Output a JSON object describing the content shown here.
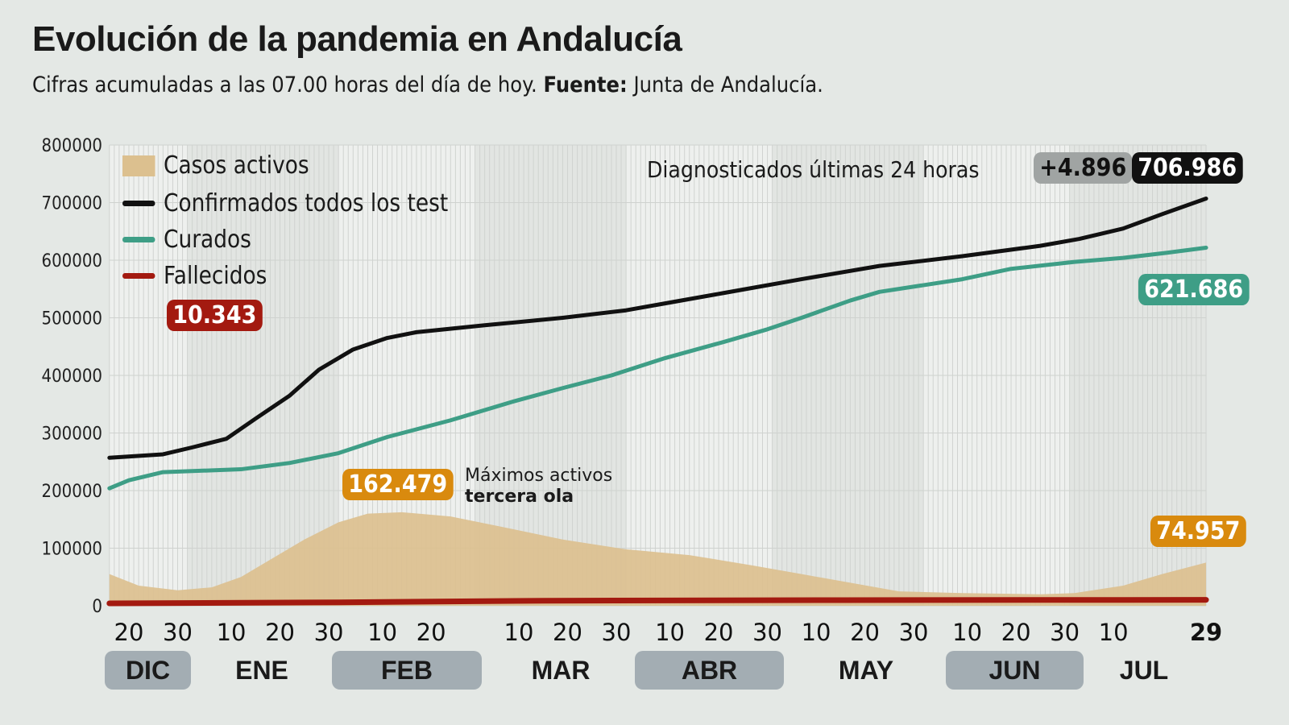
{
  "title": "Evolución de la pandemia en Andalucía",
  "subtitle": {
    "text": "Cifras acumuladas a las 07.00 horas del día de hoy.",
    "source_label": "Fuente:",
    "source": "Junta de Andalucía."
  },
  "colors": {
    "activos": "#dcc08f",
    "confirmados": "#111111",
    "curados": "#3e9e86",
    "fallecidos": "#a31a10",
    "activos_badge": "#d98a0e",
    "grey_badge": "#a0a4a3"
  },
  "legend": [
    {
      "key": "activos",
      "label": "Casos activos"
    },
    {
      "key": "confirmados",
      "label": "Confirmados todos los test"
    },
    {
      "key": "curados",
      "label": "Curados"
    },
    {
      "key": "fallecidos",
      "label": "Fallecidos"
    }
  ],
  "annotations": {
    "diagnosticados_label": "Diagnosticados últimas 24 horas",
    "diagnosticados_new": "+4.896",
    "confirmados_last": "706.986",
    "curados_last": "621.686",
    "fallecidos_last": "10.343",
    "activos_max": "162.479",
    "activos_max_label1": "Máximos activos",
    "activos_max_label2": "tercera ola",
    "activos_last": "74.957"
  },
  "chart_data": {
    "type": "line",
    "ylim": [
      0,
      800000
    ],
    "yticks": [
      "0",
      "100000",
      "200000",
      "300000",
      "400000",
      "500000",
      "600000",
      "700000",
      "800000"
    ],
    "xrange": [
      "2020-12-16",
      "2021-07-29"
    ],
    "grid": true,
    "legend_position": "top-left",
    "xticks": [
      {
        "date": "2020-12-20",
        "label": "20"
      },
      {
        "date": "2020-12-30",
        "label": "30"
      },
      {
        "date": "2021-01-10",
        "label": "10"
      },
      {
        "date": "2021-01-20",
        "label": "20"
      },
      {
        "date": "2021-01-30",
        "label": "30"
      },
      {
        "date": "2021-02-10",
        "label": "10"
      },
      {
        "date": "2021-02-20",
        "label": "20"
      },
      {
        "date": "2021-03-10",
        "label": "10"
      },
      {
        "date": "2021-03-20",
        "label": "20"
      },
      {
        "date": "2021-03-30",
        "label": "30"
      },
      {
        "date": "2021-04-10",
        "label": "10"
      },
      {
        "date": "2021-04-20",
        "label": "20"
      },
      {
        "date": "2021-04-30",
        "label": "30"
      },
      {
        "date": "2021-05-10",
        "label": "10"
      },
      {
        "date": "2021-05-20",
        "label": "20"
      },
      {
        "date": "2021-05-30",
        "label": "30"
      },
      {
        "date": "2021-06-10",
        "label": "10"
      },
      {
        "date": "2021-06-20",
        "label": "20"
      },
      {
        "date": "2021-06-30",
        "label": "30"
      },
      {
        "date": "2021-07-10",
        "label": "10"
      },
      {
        "date": "2021-07-29",
        "label": "29",
        "bold": true
      }
    ],
    "months": [
      {
        "label": "DIC",
        "shaded": true
      },
      {
        "label": "ENE",
        "shaded": false
      },
      {
        "label": "FEB",
        "shaded": true
      },
      {
        "label": "MAR",
        "shaded": false
      },
      {
        "label": "ABR",
        "shaded": true
      },
      {
        "label": "MAY",
        "shaded": false
      },
      {
        "label": "JUN",
        "shaded": true
      },
      {
        "label": "JUL",
        "shaded": false
      }
    ],
    "series": [
      {
        "name": "Casos activos",
        "key": "activos",
        "kind": "area",
        "points": [
          [
            "2020-12-16",
            55000
          ],
          [
            "2020-12-22",
            35000
          ],
          [
            "2020-12-30",
            27000
          ],
          [
            "2021-01-06",
            32000
          ],
          [
            "2021-01-12",
            50000
          ],
          [
            "2021-01-18",
            80000
          ],
          [
            "2021-01-25",
            115000
          ],
          [
            "2021-02-01",
            145000
          ],
          [
            "2021-02-07",
            160000
          ],
          [
            "2021-02-14",
            162479
          ],
          [
            "2021-02-24",
            155000
          ],
          [
            "2021-03-06",
            138000
          ],
          [
            "2021-03-19",
            115000
          ],
          [
            "2021-04-01",
            98000
          ],
          [
            "2021-04-14",
            88000
          ],
          [
            "2021-04-27",
            70000
          ],
          [
            "2021-05-07",
            55000
          ],
          [
            "2021-05-17",
            40000
          ],
          [
            "2021-05-27",
            25000
          ],
          [
            "2021-06-09",
            22000
          ],
          [
            "2021-06-25",
            20000
          ],
          [
            "2021-07-02",
            22000
          ],
          [
            "2021-07-12",
            35000
          ],
          [
            "2021-07-20",
            55000
          ],
          [
            "2021-07-29",
            74957
          ]
        ]
      },
      {
        "name": "Confirmados todos los test",
        "key": "confirmados",
        "kind": "line",
        "points": [
          [
            "2020-12-16",
            257000
          ],
          [
            "2020-12-27",
            263000
          ],
          [
            "2021-01-02",
            275000
          ],
          [
            "2021-01-09",
            290000
          ],
          [
            "2021-01-15",
            325000
          ],
          [
            "2021-01-22",
            365000
          ],
          [
            "2021-01-28",
            410000
          ],
          [
            "2021-02-04",
            445000
          ],
          [
            "2021-02-11",
            465000
          ],
          [
            "2021-02-17",
            475000
          ],
          [
            "2021-03-03",
            487000
          ],
          [
            "2021-03-19",
            500000
          ],
          [
            "2021-04-01",
            513000
          ],
          [
            "2021-04-09",
            525000
          ],
          [
            "2021-04-21",
            543000
          ],
          [
            "2021-05-07",
            567000
          ],
          [
            "2021-05-23",
            590000
          ],
          [
            "2021-06-09",
            607000
          ],
          [
            "2021-06-25",
            625000
          ],
          [
            "2021-07-03",
            637000
          ],
          [
            "2021-07-12",
            655000
          ],
          [
            "2021-07-20",
            680000
          ],
          [
            "2021-07-29",
            706986
          ]
        ]
      },
      {
        "name": "Curados",
        "key": "curados",
        "kind": "line",
        "points": [
          [
            "2020-12-16",
            204000
          ],
          [
            "2020-12-20",
            218000
          ],
          [
            "2020-12-27",
            232000
          ],
          [
            "2021-01-12",
            237000
          ],
          [
            "2021-01-22",
            248000
          ],
          [
            "2021-02-01",
            265000
          ],
          [
            "2021-02-11",
            293000
          ],
          [
            "2021-02-24",
            322000
          ],
          [
            "2021-03-09",
            355000
          ],
          [
            "2021-03-19",
            378000
          ],
          [
            "2021-03-29",
            400000
          ],
          [
            "2021-04-09",
            430000
          ],
          [
            "2021-04-21",
            458000
          ],
          [
            "2021-04-30",
            480000
          ],
          [
            "2021-05-07",
            500000
          ],
          [
            "2021-05-17",
            530000
          ],
          [
            "2021-05-23",
            545000
          ],
          [
            "2021-06-09",
            567000
          ],
          [
            "2021-06-19",
            585000
          ],
          [
            "2021-07-02",
            597000
          ],
          [
            "2021-07-12",
            604000
          ],
          [
            "2021-07-21",
            613000
          ],
          [
            "2021-07-29",
            621686
          ]
        ]
      },
      {
        "name": "Fallecidos",
        "key": "fallecidos",
        "kind": "line",
        "points": [
          [
            "2020-12-16",
            4200
          ],
          [
            "2021-02-01",
            6000
          ],
          [
            "2021-03-15",
            8800
          ],
          [
            "2021-05-15",
            9800
          ],
          [
            "2021-07-29",
            10343
          ]
        ]
      }
    ]
  }
}
